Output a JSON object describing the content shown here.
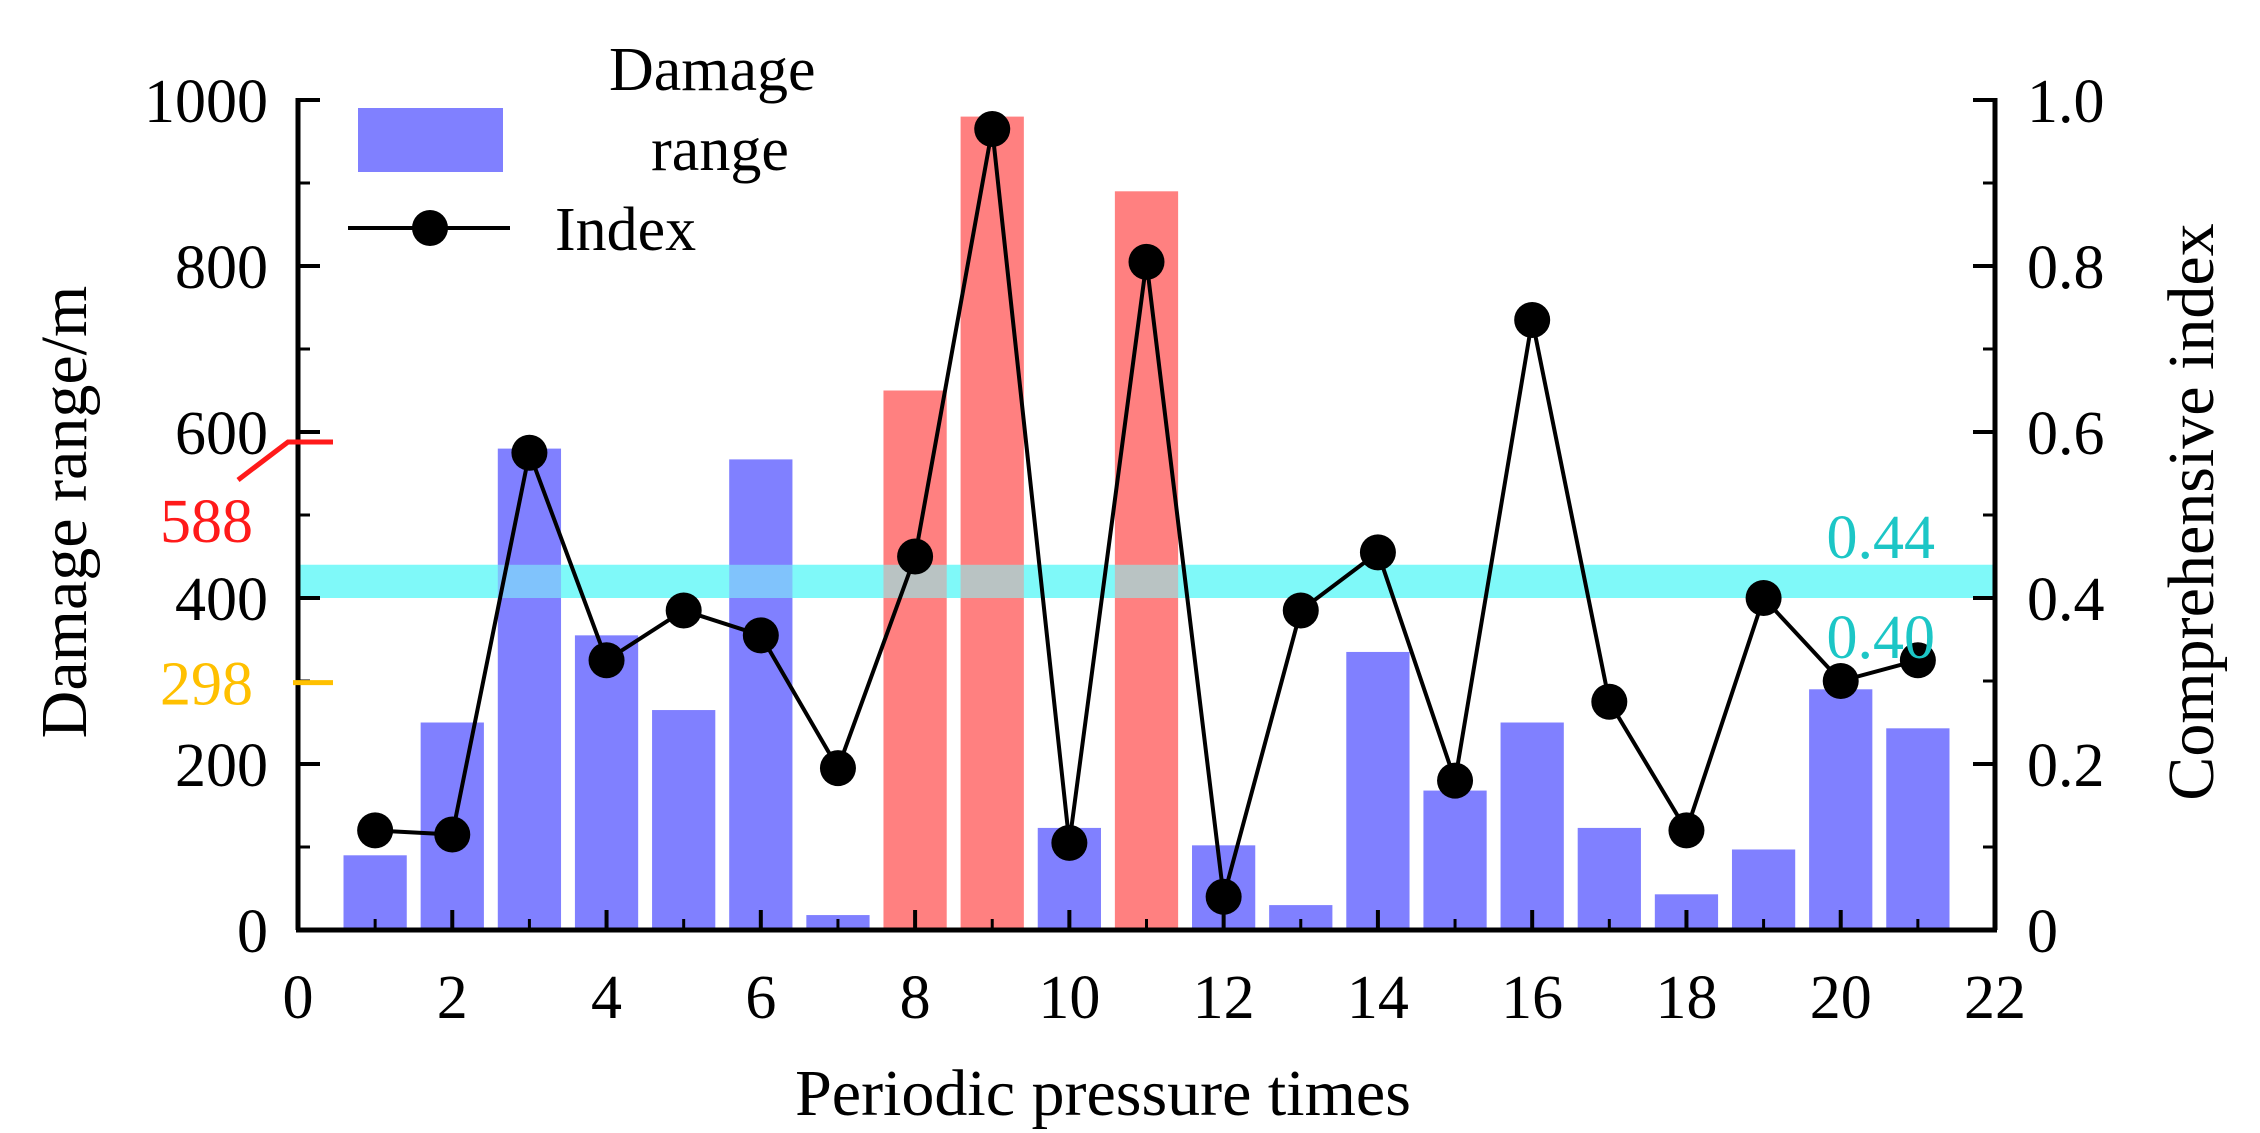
{
  "chart_data": {
    "type": "bar",
    "xlabel": "Periodic pressure times",
    "ylabel": "Damage range/m",
    "y2label": "Comprehensive index",
    "xlim": [
      0,
      22
    ],
    "ylim": [
      0,
      1000
    ],
    "y2lim": [
      0,
      1.0
    ],
    "xticks": [
      "0",
      "2",
      "4",
      "6",
      "8",
      "10",
      "12",
      "14",
      "16",
      "18",
      "20",
      "22"
    ],
    "yticks": [
      "0",
      "200",
      "400",
      "600",
      "800",
      "1000"
    ],
    "y2ticks": [
      "0",
      "0.2",
      "0.4",
      "0.6",
      "0.8",
      "1.0"
    ],
    "legend": {
      "position": "top-left",
      "bar_label": "Damage\nrange",
      "line_label": "Index"
    },
    "series": [
      {
        "name": "Damage range",
        "axis": "left",
        "kind": "bar",
        "x": [
          1,
          2,
          3,
          4,
          5,
          6,
          7,
          8,
          9,
          10,
          11,
          12,
          13,
          14,
          15,
          16,
          17,
          18,
          19,
          20,
          21
        ],
        "values": [
          90,
          250,
          580,
          355,
          265,
          567,
          18,
          650,
          980,
          123,
          890,
          102,
          30,
          335,
          168,
          250,
          123,
          43,
          97,
          290,
          243
        ],
        "highlighted": [
          8,
          9,
          11
        ]
      },
      {
        "name": "Index",
        "axis": "right",
        "kind": "line",
        "x": [
          1,
          2,
          3,
          4,
          5,
          6,
          7,
          8,
          9,
          10,
          11,
          12,
          13,
          14,
          15,
          16,
          17,
          18,
          19,
          20,
          21
        ],
        "values": [
          0.12,
          0.115,
          0.575,
          0.325,
          0.385,
          0.355,
          0.195,
          0.45,
          0.965,
          0.105,
          0.805,
          0.04,
          0.385,
          0.455,
          0.18,
          0.735,
          0.275,
          0.12,
          0.4,
          0.3,
          0.325
        ]
      }
    ],
    "annotations": {
      "threshold_band": {
        "from": 0.4,
        "to": 0.44,
        "color": "#7ff9f9",
        "label_upper": "0.44",
        "label_lower": "0.40",
        "label_color": "#1cc6c6"
      },
      "left_markers": [
        {
          "value": 588,
          "label": "588",
          "color": "#ff1a1a"
        },
        {
          "value": 298,
          "label": "298",
          "color": "#ffc000"
        }
      ]
    },
    "colors": {
      "bar": "#8080ff",
      "bar_highlight": "#ff8080",
      "line": "#000000",
      "marker": "#000000"
    }
  }
}
